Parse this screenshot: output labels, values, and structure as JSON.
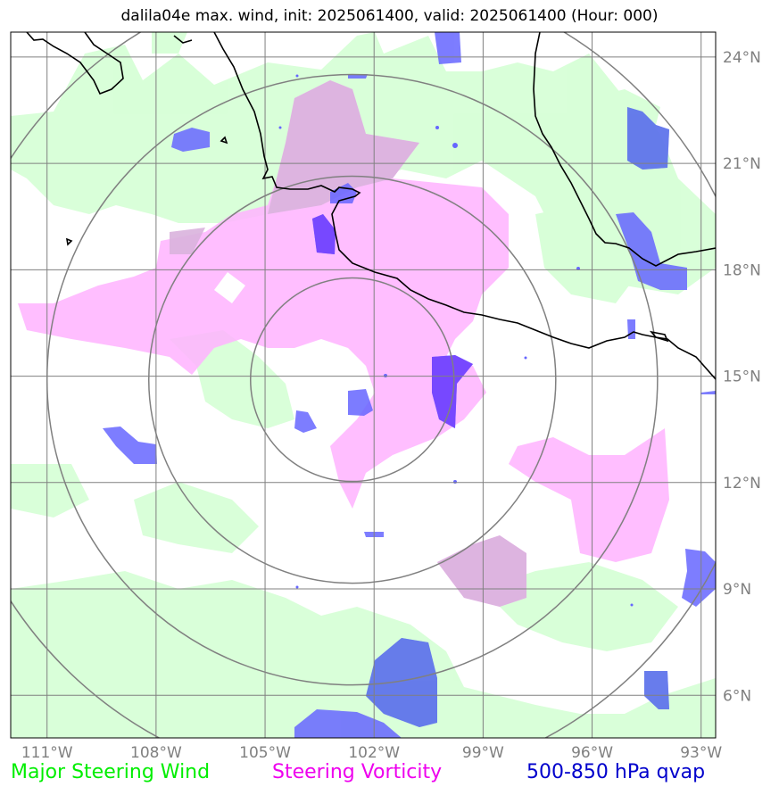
{
  "title": "dalila04e max. wind, init: 2025061400, valid: 2025061400 (Hour: 000)",
  "map": {
    "lon_range": [
      -112,
      -92.6
    ],
    "lat_range": [
      4.8,
      24.7
    ],
    "lon_ticks": [
      {
        "value": -111,
        "label": "111°W"
      },
      {
        "value": -108,
        "label": "108°W"
      },
      {
        "value": -105,
        "label": "105°W"
      },
      {
        "value": -102,
        "label": "102°W"
      },
      {
        "value": -99,
        "label": "99°W"
      },
      {
        "value": -96,
        "label": "96°W"
      },
      {
        "value": -93,
        "label": "93°W"
      }
    ],
    "lat_ticks": [
      {
        "value": 24,
        "label": "24°N"
      },
      {
        "value": 21,
        "label": "21°N"
      },
      {
        "value": 18,
        "label": "18°N"
      },
      {
        "value": 15,
        "label": "15°N"
      },
      {
        "value": 12,
        "label": "12°N"
      },
      {
        "value": 9,
        "label": "9°N"
      },
      {
        "value": 6,
        "label": "6°N"
      }
    ],
    "storm_center": {
      "lon": -102.6,
      "lat": 14.9
    },
    "range_rings_deg": [
      2.8,
      5.6,
      8.4,
      11.2
    ],
    "colors": {
      "wind": "#ccffcc",
      "vorticity": "#ffb3ff",
      "qvap": "#6666ff",
      "grid": "#808080",
      "coast": "#000000"
    }
  },
  "legend": [
    {
      "label": "Major Steering Wind",
      "color": "#00ee00"
    },
    {
      "label": "Steering Vorticity",
      "color": "#ee00ee"
    },
    {
      "label": "500-850 hPa qvap",
      "color": "#0000cc"
    }
  ]
}
